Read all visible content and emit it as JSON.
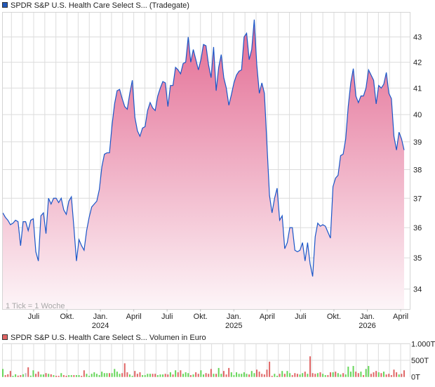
{
  "colors": {
    "price_line": "#1a56c8",
    "fill_top": "#e2668f",
    "fill_bottom": "#fdf5f8",
    "grid": "#dcdcdc",
    "volume_up": "#66d65a",
    "volume_down": "#e06666",
    "volume_flat": "#bbbbbb",
    "legend_price": "#2258b8",
    "legend_volume": "#e06464"
  },
  "chart_data": [
    {
      "type": "area",
      "title": "SPDR S&P U.S. Health Care Select S... (Tradegate)",
      "note": "1 Tick = 1 Woche",
      "y_scale": "log",
      "ylim": [
        33.36,
        44.0
      ],
      "grid": true,
      "y_ticks": [
        "34",
        "35",
        "36",
        "37",
        "38",
        "39",
        "40",
        "41",
        "42",
        "43"
      ],
      "x_ticks": [
        {
          "month": "Juli",
          "year": ""
        },
        {
          "month": "Okt.",
          "year": ""
        },
        {
          "month": "Jan.",
          "year": "2024"
        },
        {
          "month": "April",
          "year": ""
        },
        {
          "month": "Juli",
          "year": ""
        },
        {
          "month": "Okt.",
          "year": ""
        },
        {
          "month": "Jan.",
          "year": "2025"
        },
        {
          "month": "April",
          "year": ""
        },
        {
          "month": "Juli",
          "year": ""
        },
        {
          "month": "Okt.",
          "year": ""
        },
        {
          "month": "Jan.",
          "year": "2026"
        },
        {
          "month": "April",
          "year": ""
        }
      ],
      "values": [
        36.5,
        36.35,
        36.25,
        36.1,
        36.15,
        36.25,
        36.2,
        35.4,
        36.2,
        36.2,
        35.9,
        36.25,
        36.3,
        35.2,
        34.9,
        36.4,
        36.5,
        35.8,
        37.0,
        36.8,
        37.0,
        37.0,
        36.85,
        37.0,
        36.6,
        36.45,
        36.9,
        37.05,
        36.0,
        34.9,
        35.6,
        35.4,
        35.25,
        35.9,
        36.35,
        36.7,
        36.8,
        36.9,
        37.3,
        38.1,
        38.55,
        38.6,
        38.6,
        39.6,
        40.4,
        40.9,
        40.95,
        40.6,
        40.3,
        40.2,
        40.8,
        41.3,
        39.9,
        39.4,
        39.2,
        39.5,
        39.55,
        40.15,
        40.45,
        40.25,
        40.15,
        40.7,
        41.0,
        41.25,
        41.2,
        40.3,
        41.1,
        41.1,
        41.8,
        41.7,
        41.55,
        41.95,
        42.0,
        43.0,
        42.0,
        42.5,
        42.1,
        41.7,
        42.1,
        42.7,
        42.65,
        41.9,
        41.4,
        42.6,
        40.9,
        41.8,
        42.3,
        41.4,
        41.0,
        40.35,
        40.75,
        41.2,
        41.5,
        41.65,
        41.7,
        43.0,
        43.15,
        42.1,
        42.5,
        43.7,
        41.9,
        40.8,
        41.2,
        40.8,
        38.9,
        37.1,
        36.5,
        37.0,
        37.35,
        36.25,
        36.4,
        35.3,
        35.5,
        36.0,
        36.0,
        35.25,
        35.2,
        35.25,
        35.5,
        34.9,
        35.5,
        34.8,
        34.4,
        35.7,
        36.15,
        36.05,
        36.1,
        36.05,
        35.85,
        35.65,
        37.4,
        37.7,
        37.8,
        38.5,
        38.55,
        39.1,
        40.3,
        41.2,
        41.75,
        40.7,
        40.45,
        40.7,
        40.7,
        41.0,
        41.7,
        41.5,
        41.3,
        40.4,
        41.1,
        41.0,
        41.15,
        41.6,
        40.8,
        40.6,
        39.2,
        38.7,
        39.35,
        39.1,
        38.7
      ]
    },
    {
      "type": "bar",
      "title": "SPDR S&P U.S. Health Care Select S... Volumen in Euro",
      "unit": "T",
      "ylim": [
        0,
        1000
      ],
      "grid": true,
      "y_ticks": [
        {
          "value": 1000,
          "label": "1.000T"
        },
        {
          "value": 500,
          "label": "500T"
        },
        {
          "value": 0,
          "label": "0T"
        }
      ],
      "values": [
        240,
        55,
        80,
        180,
        35,
        80,
        40,
        55,
        80,
        115,
        290,
        40,
        200,
        95,
        160,
        75,
        75,
        115,
        95,
        80,
        55,
        35,
        35,
        115,
        55,
        35,
        55,
        55,
        55,
        55,
        55,
        35,
        200,
        95,
        35,
        95,
        140,
        95,
        55,
        160,
        115,
        115,
        115,
        115,
        240,
        160,
        95,
        115,
        410,
        140,
        75,
        35,
        180,
        95,
        140,
        55,
        55,
        95,
        95,
        95,
        95,
        55,
        75,
        75,
        95,
        75,
        140,
        75,
        200,
        140,
        200,
        95,
        140,
        115,
        55,
        75,
        140,
        95,
        200,
        75,
        115,
        95,
        240,
        95,
        95,
        270,
        95,
        180,
        75,
        270,
        140,
        55,
        140,
        95,
        95,
        140,
        95,
        75,
        180,
        115,
        220,
        160,
        95,
        75,
        220,
        460,
        35,
        95,
        35,
        95,
        180,
        95,
        180,
        115,
        55,
        115,
        95,
        75,
        115,
        160,
        95,
        620,
        115,
        95,
        115,
        140,
        95,
        55,
        55,
        140,
        140,
        160,
        115,
        75,
        115,
        75,
        310,
        160,
        330,
        160,
        115,
        160,
        55,
        240,
        330,
        95,
        140,
        180,
        140,
        115,
        160,
        75,
        95,
        55,
        220,
        140,
        75,
        95,
        200
      ],
      "directions": [
        "up",
        "down",
        "down",
        "down",
        "up",
        "up",
        "down",
        "down",
        "up",
        "flat",
        "down",
        "up",
        "up",
        "down",
        "down",
        "up",
        "up",
        "down",
        "up",
        "down",
        "up",
        "down",
        "down",
        "up",
        "down",
        "down",
        "up",
        "up",
        "down",
        "up",
        "up",
        "down",
        "down",
        "up",
        "up",
        "up",
        "up",
        "up",
        "up",
        "up",
        "up",
        "up",
        "down",
        "up",
        "up",
        "up",
        "up",
        "down",
        "down",
        "down",
        "up",
        "up",
        "down",
        "down",
        "down",
        "up",
        "up",
        "up",
        "up",
        "down",
        "down",
        "up",
        "up",
        "up",
        "down",
        "down",
        "up",
        "down",
        "up",
        "down",
        "down",
        "up",
        "up",
        "up",
        "down",
        "up",
        "down",
        "down",
        "up",
        "up",
        "down",
        "down",
        "down",
        "up",
        "down",
        "up",
        "up",
        "down",
        "down",
        "down",
        "up",
        "up",
        "up",
        "up",
        "up",
        "up",
        "up",
        "down",
        "up",
        "up",
        "down",
        "down",
        "down",
        "down",
        "down",
        "down",
        "down",
        "up",
        "up",
        "down",
        "up",
        "down",
        "up",
        "up",
        "down",
        "down",
        "down",
        "up",
        "up",
        "down",
        "up",
        "down",
        "down",
        "down",
        "up",
        "down",
        "up",
        "up",
        "down",
        "down",
        "up",
        "down",
        "up",
        "up",
        "down",
        "up",
        "up",
        "up",
        "up",
        "down",
        "down",
        "up",
        "down",
        "up",
        "up",
        "down",
        "down",
        "down",
        "up",
        "down",
        "up",
        "down",
        "down",
        "down",
        "down",
        "down",
        "up",
        "down",
        "down"
      ]
    }
  ]
}
